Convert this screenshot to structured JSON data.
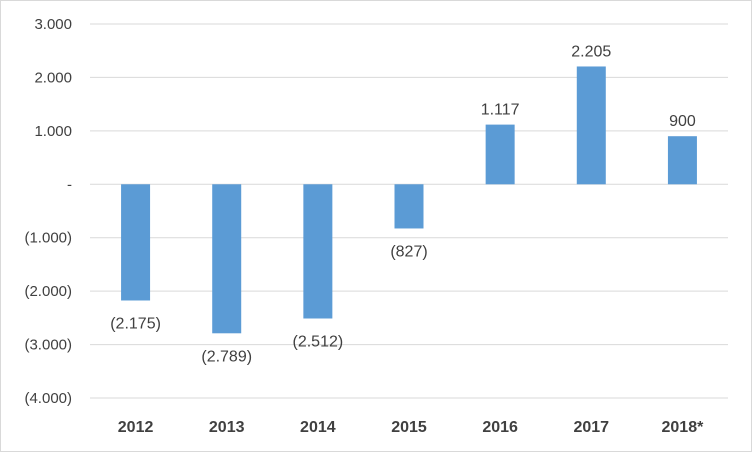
{
  "chart_data": {
    "type": "bar",
    "categories": [
      "2012",
      "2013",
      "2014",
      "2015",
      "2016",
      "2017",
      "2018*"
    ],
    "series": [
      {
        "values": [
          -2175,
          -2789,
          -2512,
          -827,
          1117,
          2205,
          900
        ],
        "data_labels": [
          "(2.175)",
          "(2.789)",
          "(2.512)",
          "(827)",
          "1.117",
          "2.205",
          "900"
        ],
        "color": "#5b9bd5"
      }
    ],
    "yticks": [
      3000,
      2000,
      1000,
      0,
      -1000,
      -2000,
      -3000,
      -4000
    ],
    "ytick_labels": [
      "3.000",
      "2.000",
      "1.000",
      "-",
      "(1.000)",
      "(2.000)",
      "(3.000)",
      "(4.000)"
    ],
    "ylim": [
      -4000,
      3000
    ],
    "grid": true,
    "legend": "none",
    "title": "",
    "xlabel": "",
    "ylabel": ""
  }
}
